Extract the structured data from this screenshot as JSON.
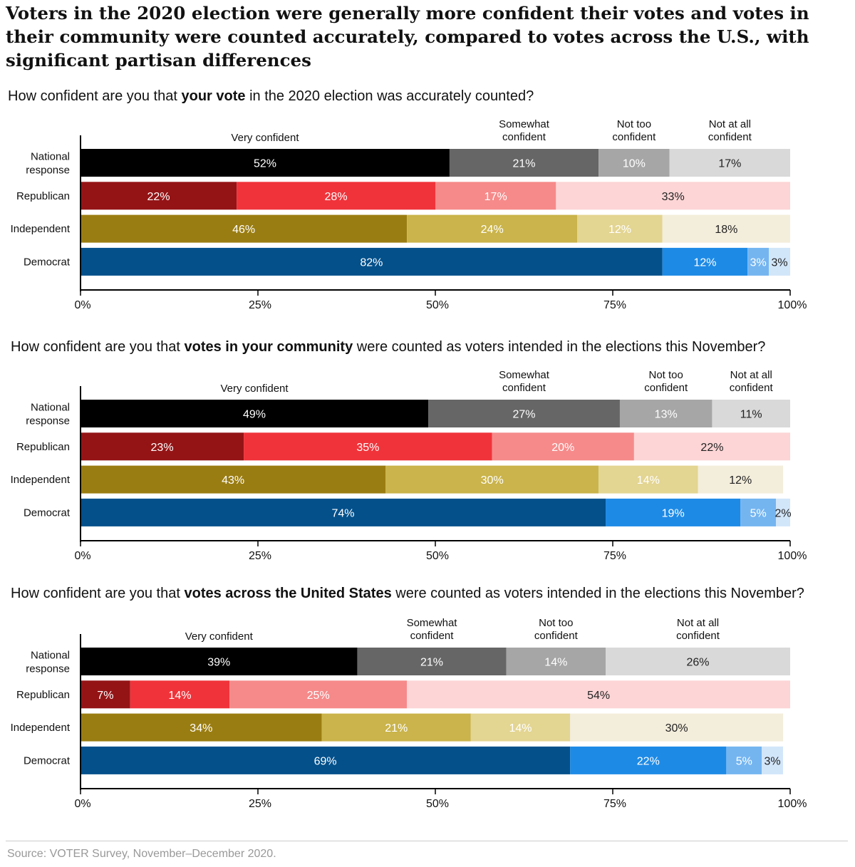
{
  "title": "Voters in the 2020 election were generally more confident their votes and votes in their community were counted accurately, compared to votes across the U.S., with significant partisan differences",
  "source": "Source: VOTER Survey, November–December 2020.",
  "colors": {
    "National response": [
      "#000000",
      "#666666",
      "#a6a6a6",
      "#d9d9d9"
    ],
    "Republican": [
      "#941416",
      "#f0333a",
      "#f68a8a",
      "#fdd5d6"
    ],
    "Independent": [
      "#9a7d12",
      "#cab44b",
      "#e3d592",
      "#f3eddb"
    ],
    "Democrat": [
      "#03508b",
      "#1d8ae6",
      "#74b5f0",
      "#d2e6fa"
    ]
  },
  "chart_data": [
    {
      "type": "bar",
      "orientation": "horizontal",
      "stacked": true,
      "question": {
        "pre": "How confident are you that ",
        "bold": "your vote",
        "post": " in the 2020 election was accurately counted?"
      },
      "categories": [
        "National response",
        "Republican",
        "Independent",
        "Democrat"
      ],
      "category_lines": [
        [
          "National",
          "response"
        ],
        [
          "Republican"
        ],
        [
          "Independent"
        ],
        [
          "Democrat"
        ]
      ],
      "series": [
        {
          "name": "Very confident",
          "name_lines": [
            "Very confident"
          ],
          "values": [
            52,
            22,
            46,
            82
          ]
        },
        {
          "name": "Somewhat confident",
          "name_lines": [
            "Somewhat",
            "confident"
          ],
          "values": [
            21,
            28,
            24,
            12
          ]
        },
        {
          "name": "Not too confident",
          "name_lines": [
            "Not too",
            "confident"
          ],
          "values": [
            10,
            17,
            12,
            3
          ]
        },
        {
          "name": "Not at all confident",
          "name_lines": [
            "Not at all",
            "confident"
          ],
          "values": [
            17,
            33,
            18,
            3
          ]
        }
      ],
      "xlim": [
        0,
        100
      ],
      "xticks": [
        "0%",
        "25%",
        "50%",
        "75%",
        "100%"
      ],
      "legend_position": "top"
    },
    {
      "type": "bar",
      "orientation": "horizontal",
      "stacked": true,
      "question": {
        "pre": "How confident are you that ",
        "bold": "votes in your community",
        "post": " were counted as voters intended in the elections this November?"
      },
      "categories": [
        "National response",
        "Republican",
        "Independent",
        "Democrat"
      ],
      "category_lines": [
        [
          "National",
          "response"
        ],
        [
          "Republican"
        ],
        [
          "Independent"
        ],
        [
          "Democrat"
        ]
      ],
      "series": [
        {
          "name": "Very confident",
          "name_lines": [
            "Very confident"
          ],
          "values": [
            49,
            23,
            43,
            74
          ]
        },
        {
          "name": "Somewhat confident",
          "name_lines": [
            "Somewhat",
            "confident"
          ],
          "values": [
            27,
            35,
            30,
            19
          ]
        },
        {
          "name": "Not too confident",
          "name_lines": [
            "Not too",
            "confident"
          ],
          "values": [
            13,
            20,
            14,
            5
          ]
        },
        {
          "name": "Not at all confident",
          "name_lines": [
            "Not at all",
            "confident"
          ],
          "values": [
            11,
            22,
            12,
            2
          ]
        }
      ],
      "xlim": [
        0,
        100
      ],
      "xticks": [
        "0%",
        "25%",
        "50%",
        "75%",
        "100%"
      ],
      "legend_position": "top"
    },
    {
      "type": "bar",
      "orientation": "horizontal",
      "stacked": true,
      "question": {
        "pre": "How confident are you that ",
        "bold": "votes across the United States",
        "post": " were counted as voters intended in the elections this November?"
      },
      "categories": [
        "National response",
        "Republican",
        "Independent",
        "Democrat"
      ],
      "category_lines": [
        [
          "National",
          "response"
        ],
        [
          "Republican"
        ],
        [
          "Independent"
        ],
        [
          "Democrat"
        ]
      ],
      "series": [
        {
          "name": "Very confident",
          "name_lines": [
            "Very confident"
          ],
          "values": [
            39,
            7,
            34,
            69
          ]
        },
        {
          "name": "Somewhat confident",
          "name_lines": [
            "Somewhat",
            "confident"
          ],
          "values": [
            21,
            14,
            21,
            22
          ]
        },
        {
          "name": "Not too confident",
          "name_lines": [
            "Not too",
            "confident"
          ],
          "values": [
            14,
            25,
            14,
            5
          ]
        },
        {
          "name": "Not at all confident",
          "name_lines": [
            "Not at all",
            "confident"
          ],
          "values": [
            26,
            54,
            30,
            3
          ]
        }
      ],
      "xlim": [
        0,
        100
      ],
      "xticks": [
        "0%",
        "25%",
        "50%",
        "75%",
        "100%"
      ],
      "legend_position": "top"
    }
  ]
}
